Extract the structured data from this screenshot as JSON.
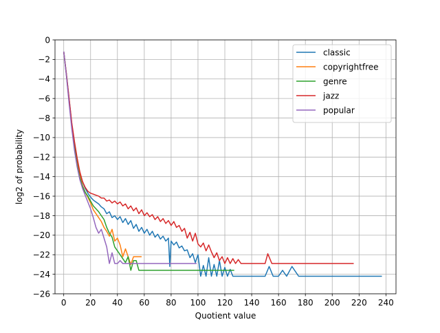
{
  "chart_data": {
    "type": "line",
    "title": "",
    "xlabel": "Quotient value",
    "ylabel": "log2 of probability",
    "xlim": [
      -6.5,
      247.5
    ],
    "ylim": [
      -26,
      0
    ],
    "xticks": [
      0,
      20,
      40,
      60,
      80,
      100,
      120,
      140,
      160,
      180,
      200,
      220,
      240
    ],
    "yticks": [
      0,
      -2,
      -4,
      -6,
      -8,
      -10,
      -12,
      -14,
      -16,
      -18,
      -20,
      -22,
      -24,
      -26
    ],
    "xtick_labels": [
      "0",
      "20",
      "40",
      "60",
      "80",
      "100",
      "120",
      "140",
      "160",
      "180",
      "200",
      "220",
      "240"
    ],
    "ytick_labels": [
      "0",
      "−2",
      "−4",
      "−6",
      "−8",
      "−10",
      "−12",
      "−14",
      "−16",
      "−18",
      "−20",
      "−22",
      "−24",
      "−26"
    ],
    "grid": true,
    "legend_position": "upper right",
    "series": [
      {
        "name": "classic",
        "color": "#1f77b4",
        "x": [
          0,
          2,
          4,
          6,
          8,
          10,
          12,
          14,
          16,
          18,
          20,
          22,
          24,
          26,
          28,
          30,
          32,
          34,
          36,
          38,
          40,
          42,
          44,
          46,
          48,
          50,
          52,
          54,
          56,
          58,
          60,
          62,
          64,
          66,
          68,
          70,
          72,
          74,
          76,
          78,
          79,
          80,
          82,
          84,
          86,
          88,
          90,
          92,
          94,
          96,
          98,
          100,
          102,
          104,
          106,
          108,
          110,
          112,
          114,
          116,
          118,
          120,
          122,
          124,
          126,
          128,
          130,
          135,
          140,
          145,
          150,
          153,
          156,
          160,
          163,
          166,
          170,
          175,
          180,
          190,
          200,
          210,
          220,
          230,
          237
        ],
        "y": [
          -1.2,
          -3.5,
          -6.0,
          -8.6,
          -10.6,
          -12.3,
          -13.6,
          -14.5,
          -15.2,
          -15.7,
          -16.1,
          -16.4,
          -16.6,
          -16.8,
          -17.1,
          -17.3,
          -17.8,
          -17.6,
          -18.2,
          -18.0,
          -18.4,
          -18.1,
          -18.7,
          -18.3,
          -18.9,
          -18.5,
          -19.3,
          -18.9,
          -19.6,
          -19.2,
          -19.8,
          -19.4,
          -20.0,
          -19.6,
          -20.2,
          -19.9,
          -20.4,
          -20.1,
          -20.6,
          -20.3,
          -23.2,
          -20.6,
          -21.0,
          -20.7,
          -21.3,
          -21.1,
          -21.6,
          -21.5,
          -22.3,
          -21.9,
          -22.8,
          -22.0,
          -24.2,
          -23.1,
          -24.2,
          -22.3,
          -24.2,
          -23.0,
          -24.2,
          -22.6,
          -24.2,
          -23.3,
          -24.2,
          -23.5,
          -24.2,
          -24.2,
          -24.2,
          -24.2,
          -24.2,
          -24.2,
          -24.2,
          -23.2,
          -24.2,
          -24.2,
          -23.6,
          -24.2,
          -23.2,
          -24.2,
          -24.2,
          -24.2,
          -24.2,
          -24.2,
          -24.2,
          -24.2,
          -24.2
        ]
      },
      {
        "name": "copyrightfree",
        "color": "#ff7f0e",
        "x": [
          0,
          2,
          4,
          6,
          8,
          10,
          12,
          14,
          16,
          18,
          20,
          22,
          24,
          26,
          28,
          30,
          32,
          34,
          36,
          38,
          40,
          42,
          44,
          46,
          48,
          50,
          52,
          54,
          56,
          58
        ],
        "y": [
          -1.2,
          -3.6,
          -6.3,
          -8.9,
          -11.0,
          -12.6,
          -13.9,
          -14.9,
          -15.6,
          -16.1,
          -16.7,
          -17.4,
          -17.8,
          -18.2,
          -18.6,
          -19.2,
          -19.6,
          -20.1,
          -19.4,
          -20.6,
          -20.3,
          -21.0,
          -22.2,
          -21.4,
          -22.2,
          -23.0,
          -22.2,
          -22.2,
          -22.2,
          -22.2
        ]
      },
      {
        "name": "genre",
        "color": "#2ca02c",
        "x": [
          0,
          2,
          4,
          6,
          8,
          10,
          12,
          14,
          16,
          18,
          20,
          22,
          24,
          26,
          28,
          30,
          32,
          34,
          36,
          38,
          40,
          42,
          44,
          46,
          48,
          50,
          52,
          54,
          56,
          58,
          60,
          70,
          80,
          90,
          100,
          110,
          120,
          127
        ],
        "y": [
          -1.2,
          -3.6,
          -6.2,
          -8.9,
          -11.0,
          -12.8,
          -14.1,
          -15.0,
          -15.6,
          -16.0,
          -16.5,
          -17.0,
          -17.3,
          -17.6,
          -18.0,
          -18.4,
          -19.2,
          -19.8,
          -20.2,
          -21.2,
          -21.6,
          -22.0,
          -22.4,
          -22.8,
          -22.2,
          -23.6,
          -22.6,
          -22.6,
          -23.6,
          -23.6,
          -23.6,
          -23.6,
          -23.6,
          -23.6,
          -23.6,
          -23.6,
          -23.6,
          -23.6
        ]
      },
      {
        "name": "jazz",
        "color": "#d62728",
        "x": [
          0,
          2,
          4,
          6,
          8,
          10,
          12,
          14,
          16,
          18,
          20,
          22,
          24,
          26,
          28,
          30,
          32,
          34,
          36,
          38,
          40,
          42,
          44,
          46,
          48,
          50,
          52,
          54,
          56,
          58,
          60,
          62,
          64,
          66,
          68,
          70,
          72,
          74,
          76,
          78,
          80,
          82,
          84,
          86,
          88,
          90,
          92,
          94,
          96,
          98,
          100,
          102,
          104,
          106,
          108,
          110,
          112,
          114,
          116,
          118,
          120,
          122,
          124,
          126,
          128,
          130,
          132,
          134,
          136,
          138,
          140,
          145,
          150,
          152,
          155,
          160,
          170,
          180,
          190,
          200,
          210,
          216
        ],
        "y": [
          -1.2,
          -3.5,
          -6.0,
          -8.5,
          -10.4,
          -12.1,
          -13.5,
          -14.5,
          -15.1,
          -15.5,
          -15.7,
          -15.8,
          -15.9,
          -16.0,
          -16.2,
          -16.2,
          -16.5,
          -16.4,
          -16.7,
          -16.5,
          -16.8,
          -16.6,
          -17.0,
          -16.8,
          -17.3,
          -17.0,
          -17.5,
          -17.2,
          -17.8,
          -17.4,
          -18.0,
          -17.7,
          -18.1,
          -17.9,
          -18.4,
          -18.1,
          -18.6,
          -18.3,
          -18.8,
          -18.5,
          -19.0,
          -18.6,
          -19.2,
          -19.0,
          -19.6,
          -19.3,
          -20.3,
          -19.7,
          -20.6,
          -19.8,
          -20.9,
          -21.2,
          -20.8,
          -21.6,
          -21.0,
          -21.7,
          -22.3,
          -21.8,
          -22.6,
          -22.2,
          -22.9,
          -22.3,
          -22.9,
          -22.4,
          -22.9,
          -22.5,
          -22.9,
          -22.9,
          -22.9,
          -22.9,
          -22.9,
          -22.9,
          -22.9,
          -21.9,
          -22.9,
          -22.9,
          -22.9,
          -22.9,
          -22.9,
          -22.9,
          -22.9,
          -22.9
        ]
      },
      {
        "name": "popular",
        "color": "#9467bd",
        "x": [
          0,
          2,
          4,
          6,
          8,
          10,
          12,
          14,
          16,
          18,
          20,
          22,
          24,
          26,
          28,
          30,
          32,
          34,
          36,
          38,
          40,
          42,
          44,
          46,
          48,
          50,
          60,
          70,
          80,
          90,
          99
        ],
        "y": [
          -1.2,
          -3.7,
          -6.5,
          -9.1,
          -11.3,
          -13.0,
          -14.3,
          -15.2,
          -15.9,
          -16.6,
          -17.3,
          -18.2,
          -19.2,
          -19.8,
          -19.4,
          -20.3,
          -21.2,
          -22.9,
          -21.8,
          -22.9,
          -22.9,
          -22.6,
          -22.9,
          -22.9,
          -22.9,
          -22.9,
          -22.9,
          -22.9,
          -22.9,
          -22.9,
          -22.9
        ]
      }
    ]
  }
}
